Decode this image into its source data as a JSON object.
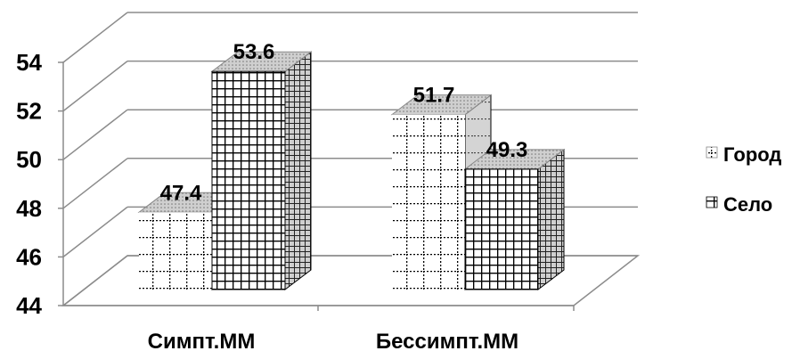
{
  "chart_data": {
    "type": "bar",
    "title": "",
    "xlabel": "",
    "ylabel": "",
    "categories": [
      "Симпт.ММ",
      "Бессимпт.ММ"
    ],
    "series": [
      {
        "name": "Город",
        "values": [
          47.4,
          51.7
        ]
      },
      {
        "name": "Село",
        "values": [
          53.6,
          49.3
        ]
      }
    ],
    "ylim": [
      44,
      54
    ],
    "yticks": [
      44,
      46,
      48,
      50,
      52,
      54
    ],
    "grid": true,
    "legend": "right",
    "three_d": true
  },
  "colors": {
    "background": "#ffffff",
    "gridline": "#8c8c8c",
    "bar_front": "#ffffff",
    "bar_pattern": "#000000",
    "bar_top": "#c8c8c8",
    "bar_side": "#d2d2d2"
  }
}
